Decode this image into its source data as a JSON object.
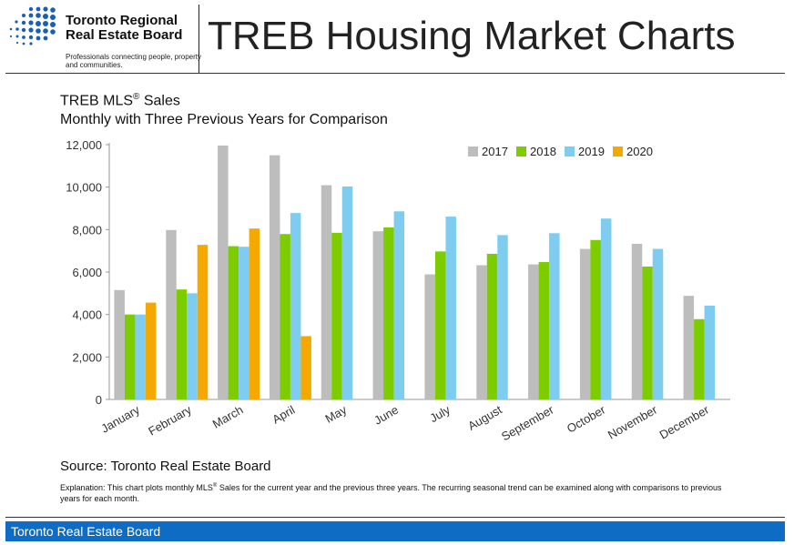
{
  "header": {
    "logo_name": "Toronto Regional Real Estate Board",
    "logo_tagline": "Professionals connecting people, property and communities.",
    "page_title": "TREB Housing Market Charts"
  },
  "chart_title": {
    "prefix": "TREB MLS",
    "registered": "®",
    "suffix": " Sales"
  },
  "chart_subtitle": "Monthly with Three Previous Years for Comparison",
  "chart_data": {
    "type": "bar",
    "categories": [
      "January",
      "February",
      "March",
      "April",
      "May",
      "June",
      "July",
      "August",
      "September",
      "October",
      "November",
      "December"
    ],
    "series": [
      {
        "name": "2017",
        "color": "#bdbdbd",
        "values": [
          5150,
          7980,
          11960,
          11500,
          10090,
          7920,
          5890,
          6320,
          6360,
          7090,
          7330,
          4880
        ]
      },
      {
        "name": "2018",
        "color": "#7ccc00",
        "values": [
          4000,
          5180,
          7220,
          7790,
          7850,
          8100,
          6970,
          6860,
          6470,
          7510,
          6260,
          3780
        ]
      },
      {
        "name": "2019",
        "color": "#7ecdf0",
        "values": [
          4000,
          5000,
          7190,
          8780,
          10030,
          8860,
          8610,
          7740,
          7830,
          8520,
          7090,
          4420
        ]
      },
      {
        "name": "2020",
        "color": "#f5a800",
        "values": [
          4560,
          7280,
          8050,
          2980,
          null,
          null,
          null,
          null,
          null,
          null,
          null,
          null
        ]
      }
    ],
    "ylim": [
      0,
      12000
    ],
    "yticks": [
      "0",
      "2,000",
      "4,000",
      "6,000",
      "8,000",
      "10,000",
      "12,000"
    ],
    "legend_position": "top-right",
    "grid": false
  },
  "source": "Source: Toronto Real Estate Board",
  "explanation": {
    "before": "Explanation: This chart plots monthly MLS",
    "registered": "®",
    "after": " Sales for the current year and the previous three years. The recurring seasonal trend can be examined along with comparisons to previous years for each month."
  },
  "footer": {
    "text": "Toronto Real Estate Board",
    "color": "#0e6cc4"
  }
}
